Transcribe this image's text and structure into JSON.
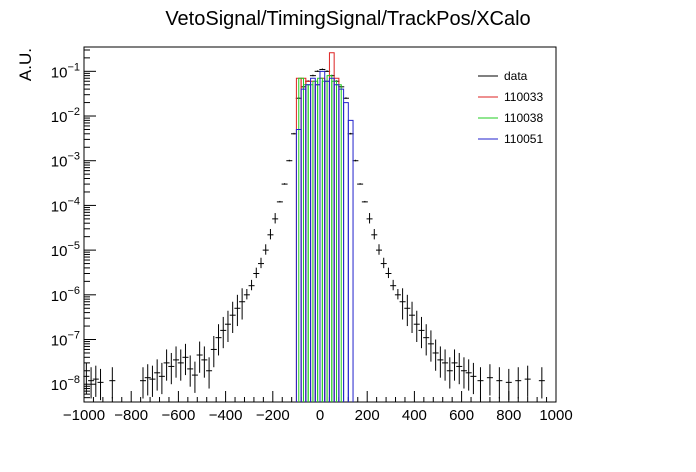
{
  "chart_data": {
    "type": "histogram-log",
    "title": "VetoSignal/TimingSignal/TrackPos/XCalo",
    "xlabel": "",
    "ylabel": "A.U.",
    "xlim": [
      -1000,
      1000
    ],
    "ylim": [
      4e-09,
      0.35
    ],
    "yscale": "log",
    "grid": false,
    "legend_position": "top-right",
    "x_ticks": [
      -1000,
      -800,
      -600,
      -400,
      -200,
      0,
      200,
      400,
      600,
      800,
      1000
    ],
    "x_tick_labels": [
      "−1000",
      "−800",
      "−600",
      "−400",
      "−200",
      "0",
      "200",
      "400",
      "600",
      "800",
      "1000"
    ],
    "y_tick_labels": [
      {
        "exp": "−8",
        "value": 1e-08
      },
      {
        "exp": "−7",
        "value": 1e-07
      },
      {
        "exp": "−6",
        "value": 1e-06
      },
      {
        "exp": "−5",
        "value": 1e-05
      },
      {
        "exp": "−4",
        "value": 0.0001
      },
      {
        "exp": "−3",
        "value": 0.001
      },
      {
        "exp": "−2",
        "value": 0.01
      },
      {
        "exp": "−1",
        "value": 0.1
      }
    ],
    "y_tick_base": "10",
    "series": [
      {
        "name": "data",
        "style": "points",
        "color": "#000000",
        "points": [
          [
            -990,
            1.5e-08
          ],
          [
            -970,
            1.2e-08
          ],
          [
            -950,
            1.3e-08
          ],
          [
            -930,
            1.1e-08
          ],
          [
            -880,
            1.2e-08
          ],
          [
            -750,
            1.2e-08
          ],
          [
            -730,
            1.4e-08
          ],
          [
            -710,
            1.3e-08
          ],
          [
            -690,
            1.8e-08
          ],
          [
            -670,
            1.5e-08
          ],
          [
            -650,
            3e-08
          ],
          [
            -630,
            2.5e-08
          ],
          [
            -610,
            3.5e-08
          ],
          [
            -590,
            3e-08
          ],
          [
            -570,
            4e-08
          ],
          [
            -550,
            2.2e-08
          ],
          [
            -530,
            1.6e-08
          ],
          [
            -510,
            4.5e-08
          ],
          [
            -490,
            3.5e-08
          ],
          [
            -470,
            2e-08
          ],
          [
            -450,
            6e-08
          ],
          [
            -430,
            1.1e-07
          ],
          [
            -410,
            1.6e-07
          ],
          [
            -390,
            2.2e-07
          ],
          [
            -370,
            3.5e-07
          ],
          [
            -350,
            5e-07
          ],
          [
            -330,
            7e-07
          ],
          [
            -310,
            1e-06
          ],
          [
            -290,
            1.6e-06
          ],
          [
            -270,
            3e-06
          ],
          [
            -250,
            5e-06
          ],
          [
            -230,
            1e-05
          ],
          [
            -210,
            2.2e-05
          ],
          [
            -190,
            5e-05
          ],
          [
            -170,
            0.00012
          ],
          [
            -150,
            0.0003
          ],
          [
            -130,
            0.001
          ],
          [
            -110,
            0.004
          ],
          [
            -90,
            0.025
          ],
          [
            -70,
            0.045
          ],
          [
            -50,
            0.06
          ],
          [
            -30,
            0.08
          ],
          [
            -10,
            0.1
          ],
          [
            10,
            0.11
          ],
          [
            30,
            0.1
          ],
          [
            50,
            0.08
          ],
          [
            70,
            0.06
          ],
          [
            90,
            0.045
          ],
          [
            110,
            0.025
          ],
          [
            130,
            0.004
          ],
          [
            150,
            0.001
          ],
          [
            170,
            0.0003
          ],
          [
            190,
            0.00012
          ],
          [
            210,
            5e-05
          ],
          [
            230,
            2.2e-05
          ],
          [
            250,
            1e-05
          ],
          [
            270,
            5e-06
          ],
          [
            290,
            3e-06
          ],
          [
            310,
            1.6e-06
          ],
          [
            330,
            1e-06
          ],
          [
            350,
            7e-07
          ],
          [
            370,
            5e-07
          ],
          [
            390,
            3.5e-07
          ],
          [
            410,
            2.2e-07
          ],
          [
            430,
            1.6e-07
          ],
          [
            450,
            1.1e-07
          ],
          [
            470,
            8e-08
          ],
          [
            490,
            5e-08
          ],
          [
            510,
            3.5e-08
          ],
          [
            530,
            3e-08
          ],
          [
            550,
            2e-08
          ],
          [
            570,
            3e-08
          ],
          [
            590,
            2.5e-08
          ],
          [
            610,
            2e-08
          ],
          [
            630,
            1.8e-08
          ],
          [
            650,
            1.5e-08
          ],
          [
            680,
            1.2e-08
          ],
          [
            720,
            1.4e-08
          ],
          [
            760,
            1.2e-08
          ],
          [
            800,
            1.1e-08
          ],
          [
            840,
            1.2e-08
          ],
          [
            880,
            1.3e-08
          ],
          [
            940,
            1.2e-08
          ]
        ]
      },
      {
        "name": "110033",
        "style": "step",
        "color": "#dd2222",
        "bins": [
          [
            -100,
            -80,
            0.07
          ],
          [
            -80,
            -60,
            0.07
          ],
          [
            -60,
            -40,
            0.06
          ],
          [
            -40,
            -20,
            0.06
          ],
          [
            -20,
            0,
            0.05
          ],
          [
            0,
            20,
            0.07
          ],
          [
            20,
            40,
            0.06
          ],
          [
            40,
            60,
            0.26
          ],
          [
            60,
            80,
            0.07
          ]
        ]
      },
      {
        "name": "110038",
        "style": "step",
        "color": "#22cc22",
        "bins": [
          [
            -90,
            -70,
            0.07
          ],
          [
            -70,
            -50,
            0.05
          ],
          [
            -50,
            -30,
            0.05
          ],
          [
            -30,
            -10,
            0.06
          ],
          [
            -10,
            10,
            0.07
          ],
          [
            10,
            30,
            0.06
          ],
          [
            30,
            50,
            0.08
          ],
          [
            50,
            70,
            0.06
          ],
          [
            70,
            90,
            0.05
          ]
        ]
      },
      {
        "name": "110051",
        "style": "step",
        "color": "#2222cc",
        "bins": [
          [
            -100,
            -80,
            0.005
          ],
          [
            -80,
            -60,
            0.04
          ],
          [
            -60,
            -40,
            0.05
          ],
          [
            -40,
            -20,
            0.07
          ],
          [
            -20,
            0,
            0.05
          ],
          [
            0,
            20,
            0.1
          ],
          [
            20,
            40,
            0.06
          ],
          [
            40,
            60,
            0.07
          ],
          [
            60,
            80,
            0.05
          ],
          [
            80,
            100,
            0.04
          ],
          [
            100,
            120,
            0.02
          ],
          [
            120,
            140,
            0.008
          ]
        ]
      }
    ]
  }
}
